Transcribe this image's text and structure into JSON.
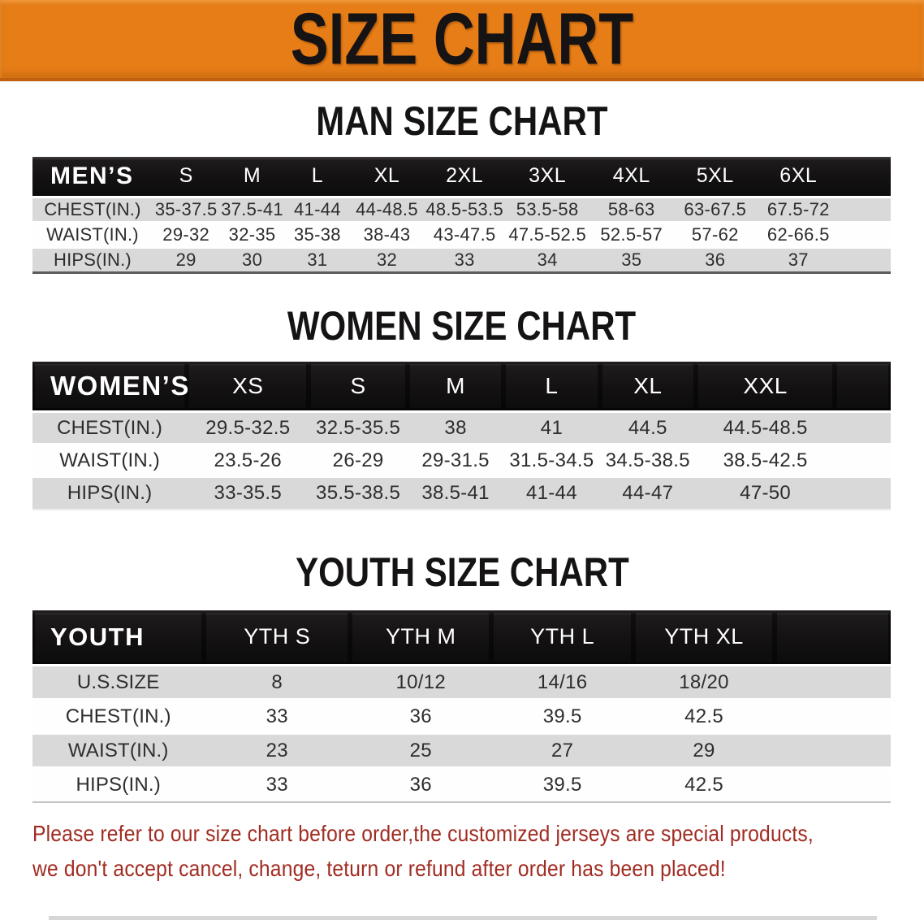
{
  "banner": {
    "title": "SIZE CHART"
  },
  "chart_data": [
    {
      "type": "table",
      "title": "MAN SIZE CHART",
      "corner_label": "MEN’S",
      "columns": [
        "S",
        "M",
        "L",
        "XL",
        "2XL",
        "3XL",
        "4XL",
        "5XL",
        "6XL"
      ],
      "rows": [
        {
          "label": "CHEST(IN.)",
          "values": [
            "35-37.5",
            "37.5-41",
            "41-44",
            "44-48.5",
            "48.5-53.5",
            "53.5-58",
            "58-63",
            "63-67.5",
            "67.5-72"
          ]
        },
        {
          "label": "WAIST(IN.)",
          "values": [
            "29-32",
            "32-35",
            "35-38",
            "38-43",
            "43-47.5",
            "47.5-52.5",
            "52.5-57",
            "57-62",
            "62-66.5"
          ]
        },
        {
          "label": "HIPS(IN.)",
          "values": [
            "29",
            "30",
            "31",
            "32",
            "33",
            "34",
            "35",
            "36",
            "37"
          ]
        }
      ]
    },
    {
      "type": "table",
      "title": "WOMEN SIZE CHART",
      "corner_label": "WOMEN’S",
      "columns": [
        "XS",
        "S",
        "M",
        "L",
        "XL",
        "XXL"
      ],
      "rows": [
        {
          "label": "CHEST(IN.)",
          "values": [
            "29.5-32.5",
            "32.5-35.5",
            "38",
            "41",
            "44.5",
            "44.5-48.5"
          ]
        },
        {
          "label": "WAIST(IN.)",
          "values": [
            "23.5-26",
            "26-29",
            "29-31.5",
            "31.5-34.5",
            "34.5-38.5",
            "38.5-42.5"
          ]
        },
        {
          "label": "HIPS(IN.)",
          "values": [
            "33-35.5",
            "35.5-38.5",
            "38.5-41",
            "41-44",
            "44-47",
            "47-50"
          ]
        }
      ]
    },
    {
      "type": "table",
      "title": "YOUTH SIZE CHART",
      "corner_label": "YOUTH",
      "columns": [
        "YTH S",
        "YTH M",
        "YTH L",
        "YTH XL"
      ],
      "rows": [
        {
          "label": "U.S.SIZE",
          "values": [
            "8",
            "10/12",
            "14/16",
            "18/20"
          ]
        },
        {
          "label": "CHEST(IN.)",
          "values": [
            "33",
            "36",
            "39.5",
            "42.5"
          ]
        },
        {
          "label": "WAIST(IN.)",
          "values": [
            "23",
            "25",
            "27",
            "29"
          ]
        },
        {
          "label": "HIPS(IN.)",
          "values": [
            "33",
            "36",
            "39.5",
            "42.5"
          ]
        }
      ]
    }
  ],
  "disclaimer": {
    "line1": "Please refer to our size chart before order,the customized jerseys are special products,",
    "line2": "we don't accept cancel, change, teturn or refund after order has been placed!"
  },
  "colors": {
    "banner_bg": "#e67d17",
    "table_header_bg": "#121011",
    "row_alt_bg": "#d9d9d9",
    "disclaimer_text": "#a02c22"
  }
}
